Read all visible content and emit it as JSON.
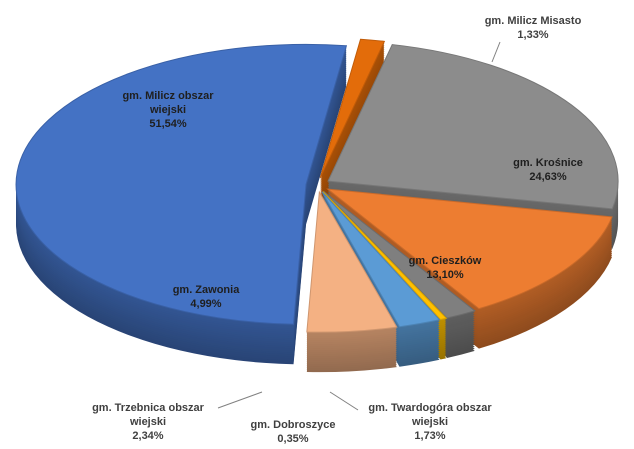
{
  "chart_data": {
    "type": "pie",
    "categories": [
      "gm. Milicz Misasto",
      "gm. Krośnice",
      "gm. Cieszków",
      "gm. Twardogóra obszar wiejski",
      "gm. Dobroszyce",
      "gm. Trzebnica obszar wiejski",
      "gm. Zawonia",
      "gm. Milicz obszar wiejski"
    ],
    "values": [
      1.33,
      24.63,
      13.1,
      1.73,
      0.35,
      2.34,
      4.99,
      51.54
    ],
    "value_labels": [
      "1,33%",
      "24,63%",
      "13,10%",
      "1,73%",
      "0,35%",
      "2,34%",
      "4,99%",
      "51,54%"
    ],
    "colors": [
      "#e36c0a",
      "#8c8c8c",
      "#ed7d31",
      "#7f7f7f",
      "#ffc000",
      "#5b9bd5",
      "#f4b183",
      "#4472c4"
    ]
  }
}
